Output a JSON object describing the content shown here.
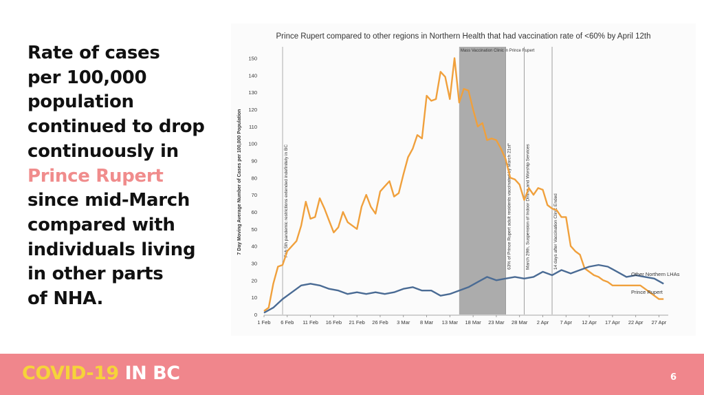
{
  "headline": {
    "lines": [
      {
        "text": "Rate of cases",
        "highlight": false
      },
      {
        "text": "per 100,000",
        "highlight": false
      },
      {
        "text": "population",
        "highlight": false
      },
      {
        "text": "continued to drop",
        "highlight": false
      },
      {
        "text": "continuously in",
        "highlight": false
      },
      {
        "text": "Prince Rupert",
        "highlight": true
      },
      {
        "text": "since mid-March",
        "highlight": false
      },
      {
        "text": "compared with",
        "highlight": false
      },
      {
        "text": "individuals living",
        "highlight": false
      },
      {
        "text": "in other parts",
        "highlight": false
      },
      {
        "text": "of NHA.",
        "highlight": false
      }
    ],
    "highlight_color": "#f08c8c"
  },
  "footer": {
    "brand_part1": "COVID-19",
    "brand_part2": "IN BC",
    "page_number": "6",
    "bar_color": "#f0868c",
    "brand_color": "#f6d33a"
  },
  "chart_data": {
    "type": "line",
    "title": "Prince Rupert compared to other regions in Northern Health that had vaccination rate of <60%  by April 12th",
    "xlabel": "",
    "ylabel": "7 Day Moving Average Number of Cases per 100,000 Population",
    "ylim": [
      0,
      155
    ],
    "yticks": [
      0,
      10,
      20,
      30,
      40,
      50,
      60,
      70,
      80,
      90,
      100,
      110,
      120,
      130,
      140,
      150
    ],
    "x_ticks": [
      "1 Feb",
      "6 Feb",
      "11 Feb",
      "16 Feb",
      "21 Feb",
      "26 Feb",
      "3 Mar",
      "8 Mar",
      "13 Mar",
      "18 Mar",
      "23 Mar",
      "28 Mar",
      "2 Apr",
      "7 Apr",
      "12 Apr",
      "17 Apr",
      "22 Apr",
      "27 Apr"
    ],
    "x_start": "2021-02-01",
    "x_end": "2021-04-29",
    "series": [
      {
        "name": "Prince Rupert",
        "color": "#f0a03c",
        "x": [
          "2021-02-01",
          "2021-02-02",
          "2021-02-03",
          "2021-02-04",
          "2021-02-05",
          "2021-02-06",
          "2021-02-07",
          "2021-02-08",
          "2021-02-09",
          "2021-02-10",
          "2021-02-11",
          "2021-02-12",
          "2021-02-13",
          "2021-02-14",
          "2021-02-15",
          "2021-02-16",
          "2021-02-17",
          "2021-02-18",
          "2021-02-19",
          "2021-02-20",
          "2021-02-21",
          "2021-02-22",
          "2021-02-23",
          "2021-02-24",
          "2021-02-25",
          "2021-02-26",
          "2021-02-27",
          "2021-02-28",
          "2021-03-01",
          "2021-03-02",
          "2021-03-03",
          "2021-03-04",
          "2021-03-05",
          "2021-03-06",
          "2021-03-07",
          "2021-03-08",
          "2021-03-09",
          "2021-03-10",
          "2021-03-11",
          "2021-03-12",
          "2021-03-13",
          "2021-03-14",
          "2021-03-15",
          "2021-03-16",
          "2021-03-17",
          "2021-03-18",
          "2021-03-19",
          "2021-03-20",
          "2021-03-21",
          "2021-03-22",
          "2021-03-23",
          "2021-03-24",
          "2021-03-25",
          "2021-03-26",
          "2021-03-27",
          "2021-03-28",
          "2021-03-29",
          "2021-03-30",
          "2021-03-31",
          "2021-04-01",
          "2021-04-02",
          "2021-04-03",
          "2021-04-04",
          "2021-04-05",
          "2021-04-06",
          "2021-04-07",
          "2021-04-08",
          "2021-04-09",
          "2021-04-10",
          "2021-04-11",
          "2021-04-12",
          "2021-04-13",
          "2021-04-14",
          "2021-04-15",
          "2021-04-16",
          "2021-04-17",
          "2021-04-18",
          "2021-04-19",
          "2021-04-20",
          "2021-04-21",
          "2021-04-22",
          "2021-04-23",
          "2021-04-24",
          "2021-04-25",
          "2021-04-26",
          "2021-04-27",
          "2021-04-28"
        ],
        "values": [
          2,
          4,
          18,
          28,
          29,
          37,
          40,
          43,
          52,
          66,
          56,
          57,
          68,
          62,
          55,
          48,
          51,
          60,
          54,
          52,
          50,
          63,
          70,
          63,
          59,
          72,
          75,
          78,
          69,
          71,
          82,
          92,
          97,
          105,
          103,
          128,
          125,
          126,
          142,
          139,
          126,
          150,
          124,
          132,
          131,
          120,
          110,
          112,
          102,
          103,
          102,
          97,
          91,
          80,
          79,
          76,
          67,
          74,
          70,
          74,
          73,
          64,
          62,
          61,
          57,
          57,
          40,
          37,
          35,
          27,
          25,
          23,
          22,
          20,
          19,
          17,
          17,
          17,
          17,
          17,
          17,
          17,
          15,
          13,
          11,
          9,
          9
        ]
      },
      {
        "name": "Other Northern LHAs",
        "color": "#4a6b94",
        "x": [
          "2021-02-01",
          "2021-02-03",
          "2021-02-05",
          "2021-02-07",
          "2021-02-09",
          "2021-02-11",
          "2021-02-13",
          "2021-02-15",
          "2021-02-17",
          "2021-02-19",
          "2021-02-21",
          "2021-02-23",
          "2021-02-25",
          "2021-02-27",
          "2021-03-01",
          "2021-03-03",
          "2021-03-05",
          "2021-03-07",
          "2021-03-09",
          "2021-03-11",
          "2021-03-13",
          "2021-03-15",
          "2021-03-17",
          "2021-03-19",
          "2021-03-21",
          "2021-03-23",
          "2021-03-25",
          "2021-03-27",
          "2021-03-29",
          "2021-03-31",
          "2021-04-02",
          "2021-04-04",
          "2021-04-06",
          "2021-04-08",
          "2021-04-10",
          "2021-04-12",
          "2021-04-14",
          "2021-04-16",
          "2021-04-18",
          "2021-04-20",
          "2021-04-22",
          "2021-04-24",
          "2021-04-26",
          "2021-04-28"
        ],
        "values": [
          1,
          4,
          9,
          13,
          17,
          18,
          17,
          15,
          14,
          12,
          13,
          12,
          13,
          12,
          13,
          15,
          16,
          14,
          14,
          11,
          12,
          14,
          16,
          19,
          22,
          20,
          21,
          22,
          21,
          22,
          25,
          23,
          26,
          24,
          26,
          28,
          29,
          28,
          25,
          22,
          23,
          22,
          21,
          18
        ]
      }
    ],
    "annotations": [
      {
        "type": "vline",
        "x": "2021-02-05",
        "label": "Feb 5th pandemic restrictions extended indefinitely in BC",
        "color": "#999999"
      },
      {
        "type": "band",
        "x0": "2021-03-15",
        "x1": "2021-03-25",
        "label": "Mass Vaccination Clinic in Prince Rupert",
        "color": "#9e9e9e"
      },
      {
        "type": "vline",
        "x": "2021-03-25",
        "label": "63% of Prince Rupert adult residents vaccinated by March 21st*",
        "color": "#888888"
      },
      {
        "type": "vline",
        "x": "2021-03-29",
        "label": "March 29th, Suspension of Indoor Dining and Worship Services",
        "color": "#888888"
      },
      {
        "type": "vline",
        "x": "2021-04-04",
        "label": "14 days after Vaccination Clinic Ended",
        "color": "#888888"
      }
    ],
    "series_labels": [
      {
        "series": "Other Northern LHAs",
        "text": "Other Northern LHAs"
      },
      {
        "series": "Prince Rupert",
        "text": "Prince Rupert"
      }
    ],
    "grid": false,
    "legend": "inline-right"
  }
}
